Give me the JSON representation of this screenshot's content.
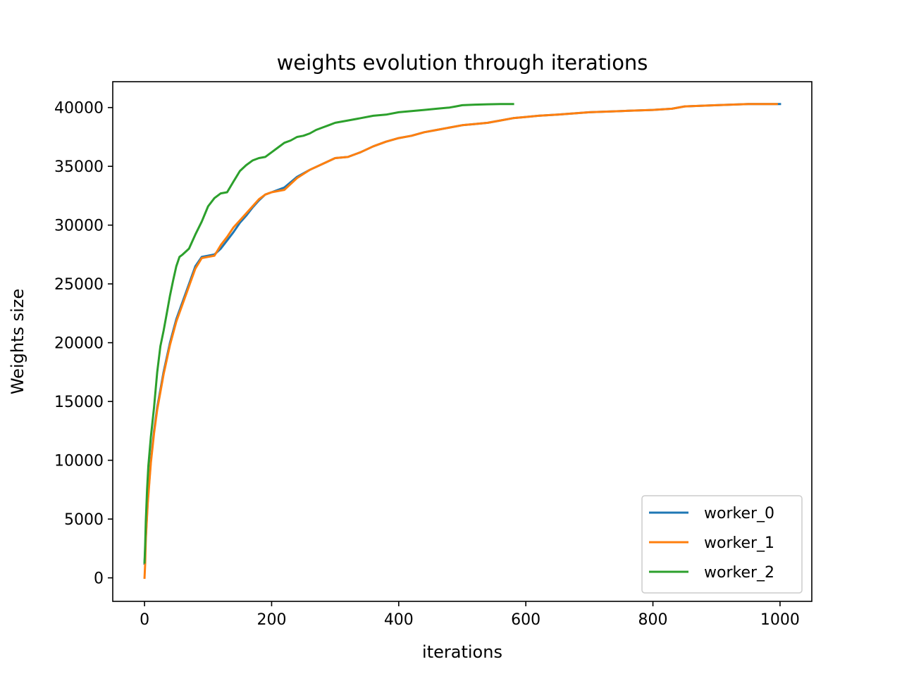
{
  "chart_data": {
    "type": "line",
    "title": "weights evolution through iterations",
    "xlabel": "iterations",
    "ylabel": "Weights size",
    "xlim": [
      -50,
      1050
    ],
    "ylim": [
      -2000,
      42200
    ],
    "xticks": [
      0,
      200,
      400,
      600,
      800,
      1000
    ],
    "yticks": [
      0,
      5000,
      10000,
      15000,
      20000,
      25000,
      30000,
      35000,
      40000
    ],
    "grid": false,
    "legend_position": "lower right",
    "series": [
      {
        "name": "worker_0",
        "color": "#1f77b4",
        "x": [
          0,
          2,
          5,
          10,
          15,
          20,
          25,
          30,
          40,
          50,
          60,
          70,
          80,
          90,
          100,
          110,
          120,
          130,
          140,
          150,
          160,
          170,
          180,
          190,
          200,
          220,
          240,
          260,
          280,
          300,
          320,
          340,
          360,
          380,
          400,
          420,
          440,
          460,
          480,
          500,
          520,
          540,
          560,
          580,
          600,
          620,
          650,
          700,
          750,
          800,
          830,
          850,
          900,
          950,
          1000
        ],
        "y": [
          1200,
          3500,
          6500,
          10000,
          12500,
          14500,
          16000,
          17500,
          20000,
          22000,
          23500,
          25000,
          26500,
          27300,
          27400,
          27500,
          28000,
          28700,
          29400,
          30200,
          30800,
          31500,
          32100,
          32600,
          32800,
          33200,
          34100,
          34700,
          35200,
          35700,
          35800,
          36200,
          36700,
          37100,
          37400,
          37600,
          37900,
          38100,
          38300,
          38500,
          38600,
          38700,
          38900,
          39100,
          39200,
          39300,
          39400,
          39600,
          39700,
          39800,
          39900,
          40100,
          40200,
          40300,
          40300
        ]
      },
      {
        "name": "worker_1",
        "color": "#ff7f0e",
        "x": [
          0,
          1,
          2,
          5,
          10,
          15,
          20,
          25,
          30,
          40,
          50,
          60,
          70,
          80,
          90,
          100,
          110,
          120,
          130,
          140,
          150,
          160,
          170,
          180,
          190,
          200,
          220,
          240,
          260,
          280,
          300,
          320,
          340,
          360,
          380,
          400,
          420,
          440,
          460,
          480,
          500,
          520,
          540,
          560,
          580,
          600,
          620,
          650,
          700,
          750,
          800,
          830,
          850,
          900,
          950,
          995
        ],
        "y": [
          0,
          1200,
          3300,
          6300,
          9800,
          12300,
          14300,
          15800,
          17300,
          19800,
          21800,
          23300,
          24800,
          26300,
          27200,
          27300,
          27400,
          28300,
          29000,
          29800,
          30400,
          31000,
          31600,
          32200,
          32600,
          32800,
          33000,
          34000,
          34700,
          35200,
          35700,
          35800,
          36200,
          36700,
          37100,
          37400,
          37600,
          37900,
          38100,
          38300,
          38500,
          38600,
          38700,
          38900,
          39100,
          39200,
          39300,
          39400,
          39600,
          39700,
          39800,
          39900,
          40100,
          40200,
          40300,
          40300
        ]
      },
      {
        "name": "worker_2",
        "color": "#2ca02c",
        "x": [
          0,
          1,
          2,
          4,
          6,
          10,
          15,
          20,
          25,
          30,
          35,
          40,
          45,
          50,
          55,
          60,
          70,
          80,
          90,
          100,
          110,
          120,
          130,
          140,
          150,
          160,
          170,
          180,
          190,
          200,
          210,
          220,
          230,
          240,
          250,
          260,
          270,
          280,
          290,
          300,
          320,
          340,
          360,
          380,
          400,
          420,
          440,
          460,
          480,
          490,
          500,
          520,
          540,
          560,
          580
        ],
        "y": [
          1300,
          2800,
          4800,
          7500,
          9500,
          12000,
          14500,
          17500,
          19700,
          21000,
          22500,
          24000,
          25300,
          26500,
          27300,
          27500,
          28000,
          29200,
          30300,
          31600,
          32300,
          32700,
          32800,
          33700,
          34600,
          35100,
          35500,
          35700,
          35800,
          36200,
          36600,
          37000,
          37200,
          37500,
          37600,
          37800,
          38100,
          38300,
          38500,
          38700,
          38900,
          39100,
          39300,
          39400,
          39600,
          39700,
          39800,
          39900,
          40000,
          40100,
          40200,
          40250,
          40280,
          40300,
          40300
        ]
      }
    ]
  }
}
